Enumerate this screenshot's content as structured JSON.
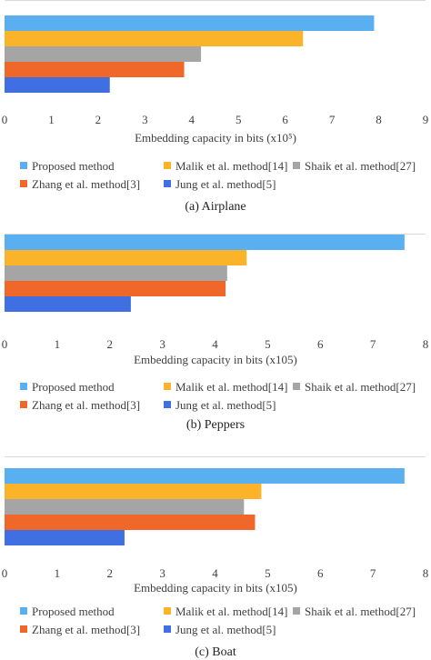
{
  "colors": {
    "Proposed method": "#5aaff0",
    "Malik et al. method[14]": "#fbb42a",
    "Shaik et al. method[27]": "#a5a5a5",
    "Zhang et al. method[3]": "#f0672a",
    "Jung et al. method[5]": "#3f6fe0"
  },
  "legend_rows": [
    [
      "Proposed method",
      "Malik et al. method[14]",
      "Shaik et al. method[27]"
    ],
    [
      "Zhang et al. method[3]",
      "Jung et al. method[5]"
    ]
  ],
  "chart_data": [
    {
      "type": "bar",
      "orientation": "horizontal",
      "caption": "(a) Airplane",
      "xlabel": "Embedding capacity in bits (x10⁵)",
      "xlim": [
        0,
        9
      ],
      "ticks": [
        "0",
        "1",
        "2",
        "3",
        "4",
        "5",
        "6",
        "7",
        "8",
        "9"
      ],
      "series": [
        {
          "name": "Proposed method",
          "value": 7.9
        },
        {
          "name": "Malik et al. method[14]",
          "value": 6.38
        },
        {
          "name": "Shaik et al. method[27]",
          "value": 4.2
        },
        {
          "name": "Zhang et al. method[3]",
          "value": 3.84
        },
        {
          "name": "Jung et al. method[5]",
          "value": 2.25
        }
      ],
      "legend": "bottom"
    },
    {
      "type": "bar",
      "orientation": "horizontal",
      "caption": "(b) Peppers",
      "xlabel": "Embedding capacity in bits (x105)",
      "xlim": [
        0,
        8
      ],
      "ticks": [
        "0",
        "1",
        "2",
        "3",
        "4",
        "5",
        "6",
        "7",
        "8"
      ],
      "series": [
        {
          "name": "Proposed method",
          "value": 7.6
        },
        {
          "name": "Malik et al. method[14]",
          "value": 4.6
        },
        {
          "name": "Shaik et al. method[27]",
          "value": 4.23
        },
        {
          "name": "Zhang et al. method[3]",
          "value": 4.2
        },
        {
          "name": "Jung et al. method[5]",
          "value": 2.4
        }
      ],
      "legend": "bottom"
    },
    {
      "type": "bar",
      "orientation": "horizontal",
      "caption": "(c) Boat",
      "xlabel": "Embedding capacity in bits (x105)",
      "xlim": [
        0,
        8
      ],
      "ticks": [
        "0",
        "1",
        "2",
        "3",
        "4",
        "5",
        "6",
        "7",
        "8"
      ],
      "series": [
        {
          "name": "Proposed method",
          "value": 7.6
        },
        {
          "name": "Malik et al. method[14]",
          "value": 4.88
        },
        {
          "name": "Shaik et al. method[27]",
          "value": 4.55
        },
        {
          "name": "Zhang et al. method[3]",
          "value": 4.76
        },
        {
          "name": "Jung et al. method[5]",
          "value": 2.28
        }
      ],
      "legend": "bottom"
    }
  ]
}
